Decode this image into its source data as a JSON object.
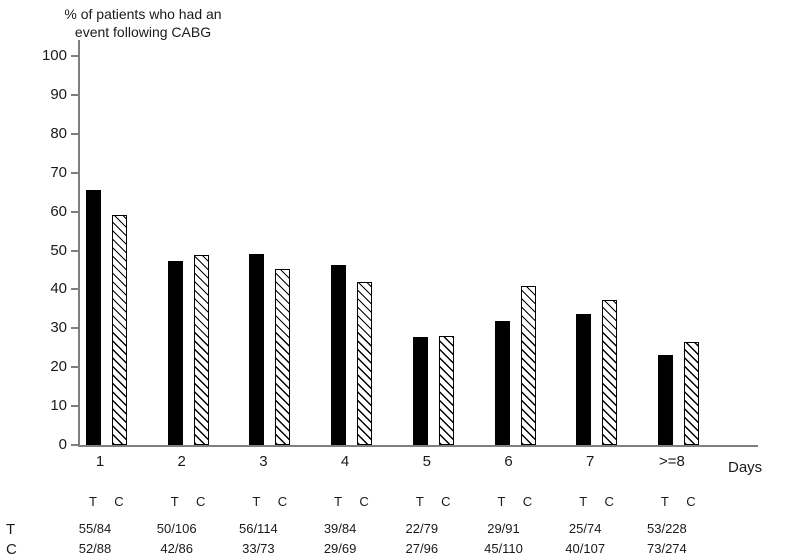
{
  "title": {
    "line1": "% of patients who had an",
    "line2": "event following CABG"
  },
  "axes": {
    "x_label": "Days",
    "y_tick_labels": [
      "0",
      "10",
      "20",
      "30",
      "40",
      "50",
      "60",
      "70",
      "80",
      "90",
      "100"
    ],
    "categories": [
      "1",
      "2",
      "3",
      "4",
      "5",
      "6",
      "7",
      ">=8"
    ]
  },
  "chart_data": {
    "type": "bar",
    "title": "% of patients who had an event following CABG",
    "xlabel": "Days",
    "ylabel": "% of patients who had an event following CABG",
    "ylim": [
      0,
      100
    ],
    "y_tick_step": 10,
    "grid": false,
    "legend_position": "none",
    "categories": [
      "1",
      "2",
      "3",
      "4",
      "5",
      "6",
      "7",
      ">=8"
    ],
    "series": [
      {
        "name": "T",
        "style": "solid-black",
        "values": [
          65.5,
          47.2,
          49.1,
          46.4,
          27.8,
          31.9,
          33.8,
          23.2
        ],
        "fractions": [
          "55/84",
          "50/106",
          "56/114",
          "39/84",
          "22/79",
          "29/91",
          "25/74",
          "53/228"
        ]
      },
      {
        "name": "C",
        "style": "hatched-diagonal",
        "values": [
          59.1,
          48.8,
          45.2,
          42.0,
          28.1,
          40.9,
          37.4,
          26.6
        ],
        "fractions": [
          "52/88",
          "42/86",
          "33/73",
          "29/69",
          "27/96",
          "45/110",
          "40/107",
          "73/274"
        ]
      }
    ]
  },
  "table": {
    "column_header_pair": [
      "T",
      "C"
    ],
    "row_labels": [
      "T",
      "C"
    ]
  },
  "colors": {
    "bar_t": "#000000",
    "bar_c_fill": "#ffffff",
    "bar_c_line": "#000000",
    "axis": "#7f7f7f",
    "text": "#1a1a1a"
  }
}
